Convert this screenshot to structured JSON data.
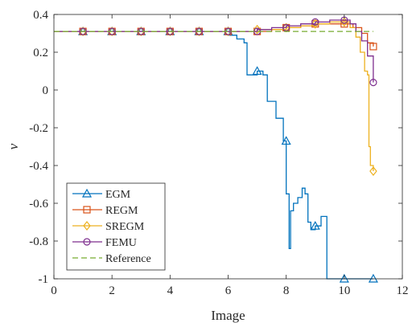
{
  "chart_data": {
    "type": "line",
    "title": "",
    "xlabel": "Image",
    "ylabel": "ν",
    "xlim": [
      0,
      12
    ],
    "ylim": [
      -1,
      0.4
    ],
    "xticks": [
      0,
      2,
      4,
      6,
      8,
      10,
      12
    ],
    "xtick_labels": [
      "0",
      "2",
      "4",
      "6",
      "8",
      "10",
      "12"
    ],
    "yticks": [
      -1,
      -0.8,
      -0.6,
      -0.4,
      -0.2,
      0,
      0.2,
      0.4
    ],
    "ytick_labels": [
      "-1",
      "-0.8",
      "-0.6",
      "-0.4",
      "-0.2",
      "0",
      "0.2",
      "0.4"
    ],
    "grid": false,
    "legend_position": "bottom-left",
    "series": [
      {
        "name": "EGM",
        "color": "#0072BD",
        "marker": "triangle",
        "step": true,
        "x": [
          0,
          6.0,
          6.05,
          6.3,
          6.55,
          6.65,
          7.0,
          7.2,
          7.35,
          7.65,
          7.9,
          8.0,
          8.1,
          8.15,
          8.25,
          8.4,
          8.55,
          8.65,
          8.75,
          8.85,
          9.0,
          9.2,
          9.4,
          10.0,
          11.0
        ],
        "y": [
          0.31,
          0.31,
          0.29,
          0.27,
          0.25,
          0.08,
          0.1,
          0.08,
          -0.06,
          -0.15,
          -0.27,
          -0.55,
          -0.84,
          -0.64,
          -0.6,
          -0.57,
          -0.52,
          -0.55,
          -0.7,
          -0.74,
          -0.72,
          -0.67,
          -1.0,
          -1.0,
          -1.0
        ],
        "marker_x": [
          1,
          2,
          3,
          4,
          5,
          6,
          7,
          8,
          9,
          10,
          11
        ],
        "marker_y": [
          0.31,
          0.31,
          0.31,
          0.31,
          0.31,
          0.31,
          0.1,
          -0.27,
          -0.72,
          -1.0,
          -1.0
        ]
      },
      {
        "name": "REGM",
        "color": "#D95319",
        "marker": "square",
        "step": true,
        "x": [
          0,
          6.0,
          7.0,
          7.5,
          8.0,
          8.5,
          9.0,
          9.5,
          10.0,
          10.3,
          10.6,
          10.8,
          11.0
        ],
        "y": [
          0.31,
          0.31,
          0.31,
          0.32,
          0.33,
          0.34,
          0.35,
          0.35,
          0.35,
          0.33,
          0.3,
          0.25,
          0.23
        ],
        "marker_x": [
          1,
          2,
          3,
          4,
          5,
          6,
          7,
          8,
          9,
          10,
          11
        ],
        "marker_y": [
          0.31,
          0.31,
          0.31,
          0.31,
          0.31,
          0.31,
          0.31,
          0.33,
          0.35,
          0.35,
          0.23
        ]
      },
      {
        "name": "SREGM",
        "color": "#EDB120",
        "marker": "diamond",
        "step": true,
        "x": [
          0,
          6.0,
          7.0,
          8.0,
          8.5,
          9.0,
          9.5,
          10.0,
          10.2,
          10.4,
          10.55,
          10.7,
          10.8,
          10.85,
          10.9,
          11.0
        ],
        "y": [
          0.31,
          0.31,
          0.32,
          0.33,
          0.34,
          0.35,
          0.36,
          0.36,
          0.33,
          0.28,
          0.2,
          0.1,
          0.08,
          -0.3,
          -0.4,
          -0.43
        ],
        "marker_x": [
          1,
          2,
          3,
          4,
          5,
          6,
          7,
          8,
          9,
          10,
          11
        ],
        "marker_y": [
          0.31,
          0.31,
          0.31,
          0.31,
          0.31,
          0.31,
          0.32,
          0.33,
          0.35,
          0.36,
          -0.43
        ]
      },
      {
        "name": "FEMU",
        "color": "#7E2F8E",
        "marker": "circle",
        "step": true,
        "x": [
          0,
          6.0,
          7.0,
          7.5,
          8.0,
          8.5,
          9.0,
          9.5,
          10.0,
          10.2,
          10.4,
          10.6,
          10.8,
          11.0
        ],
        "y": [
          0.31,
          0.31,
          0.32,
          0.33,
          0.34,
          0.35,
          0.36,
          0.37,
          0.37,
          0.35,
          0.31,
          0.26,
          0.18,
          0.04
        ],
        "marker_x": [
          1,
          2,
          3,
          4,
          5,
          6,
          7,
          8,
          9,
          10,
          11
        ],
        "marker_y": [
          0.31,
          0.31,
          0.31,
          0.31,
          0.31,
          0.31,
          0.31,
          0.33,
          0.36,
          0.37,
          0.04
        ]
      },
      {
        "name": "Reference",
        "color": "#77AC30",
        "marker": "none",
        "dashed": true,
        "step": false,
        "x": [
          0,
          11
        ],
        "y": [
          0.31,
          0.31
        ]
      }
    ]
  }
}
